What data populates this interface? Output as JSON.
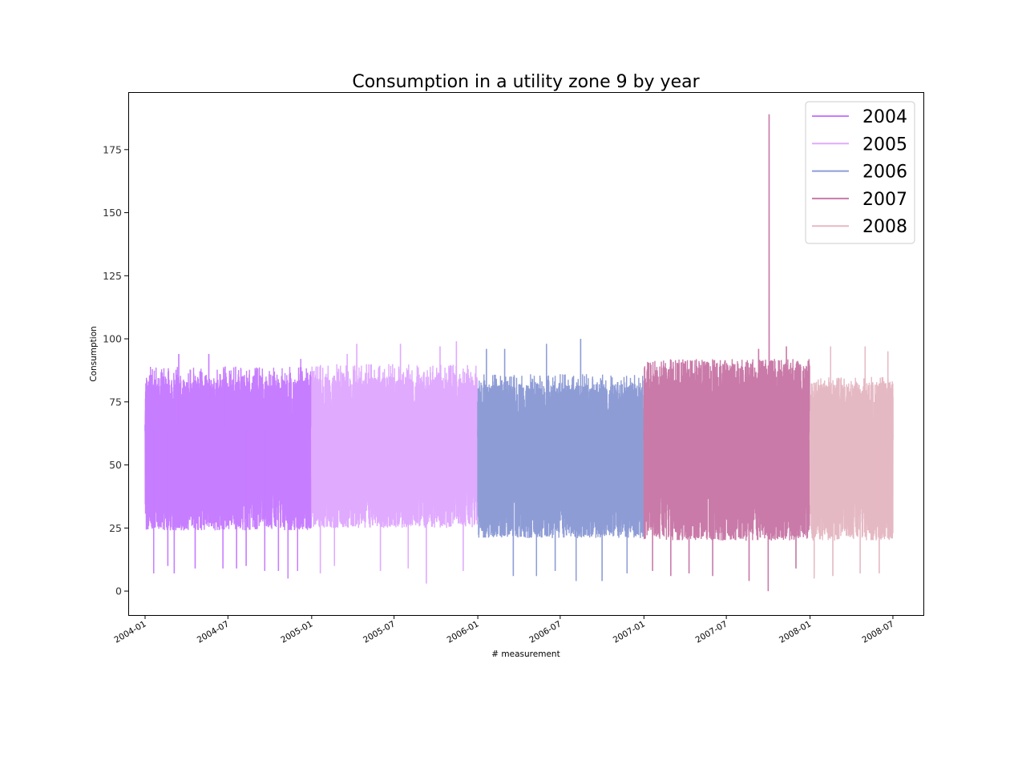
{
  "chart_data": {
    "type": "line",
    "title": "Consumption in a utility zone 9 by year",
    "xlabel": "# measurement",
    "ylabel": "Consumption",
    "xlim": [
      "2003-11-25",
      "2008-09-06"
    ],
    "ylim": [
      -9.5,
      197.8
    ],
    "x_ticks": [
      "2004-01",
      "2004-07",
      "2005-01",
      "2005-07",
      "2006-01",
      "2006-07",
      "2007-01",
      "2007-07",
      "2008-01",
      "2008-07"
    ],
    "y_ticks": [
      0,
      25,
      50,
      75,
      100,
      125,
      150,
      175
    ],
    "grid": false,
    "legend_position": "top-right",
    "series": [
      {
        "name": "2004",
        "color": "#c77dff",
        "x_start": "2004-01-01",
        "x_end": "2004-12-31",
        "typical_range": [
          24,
          84
        ],
        "points": [
          {
            "x": "2004-01-01",
            "y": 66
          },
          {
            "x": "2004-01-15",
            "y": 85
          },
          {
            "x": "2004-01-20",
            "y": 7
          },
          {
            "x": "2004-02-20",
            "y": 10
          },
          {
            "x": "2004-03-05",
            "y": 7
          },
          {
            "x": "2004-03-15",
            "y": 94
          },
          {
            "x": "2004-04-20",
            "y": 9
          },
          {
            "x": "2004-05-20",
            "y": 94
          },
          {
            "x": "2004-06-20",
            "y": 9
          },
          {
            "x": "2004-06-25",
            "y": 89
          },
          {
            "x": "2004-07-20",
            "y": 9
          },
          {
            "x": "2004-08-10",
            "y": 10
          },
          {
            "x": "2004-08-25",
            "y": 85
          },
          {
            "x": "2004-09-20",
            "y": 8
          },
          {
            "x": "2004-10-20",
            "y": 8
          },
          {
            "x": "2004-11-10",
            "y": 5
          },
          {
            "x": "2004-12-01",
            "y": 8
          },
          {
            "x": "2004-12-08",
            "y": 92
          },
          {
            "x": "2004-12-31",
            "y": 85
          }
        ]
      },
      {
        "name": "2005",
        "color": "#e0aaff",
        "x_start": "2005-01-01",
        "x_end": "2005-12-31",
        "typical_range": [
          25,
          85
        ],
        "points": [
          {
            "x": "2005-01-01",
            "y": 60
          },
          {
            "x": "2005-01-20",
            "y": 7
          },
          {
            "x": "2005-02-20",
            "y": 10
          },
          {
            "x": "2005-03-20",
            "y": 94
          },
          {
            "x": "2005-04-10",
            "y": 98
          },
          {
            "x": "2005-06-01",
            "y": 8
          },
          {
            "x": "2005-07-15",
            "y": 98
          },
          {
            "x": "2005-08-01",
            "y": 9
          },
          {
            "x": "2005-09-10",
            "y": 3
          },
          {
            "x": "2005-10-10",
            "y": 97
          },
          {
            "x": "2005-11-15",
            "y": 99
          },
          {
            "x": "2005-11-30",
            "y": 8
          },
          {
            "x": "2005-12-31",
            "y": 80
          }
        ]
      },
      {
        "name": "2006",
        "color": "#8e9cd6",
        "x_start": "2006-01-01",
        "x_end": "2006-12-31",
        "typical_range": [
          21,
          82
        ],
        "points": [
          {
            "x": "2006-01-01",
            "y": 75
          },
          {
            "x": "2006-01-20",
            "y": 96
          },
          {
            "x": "2006-03-01",
            "y": 96
          },
          {
            "x": "2006-03-20",
            "y": 6
          },
          {
            "x": "2006-05-10",
            "y": 6
          },
          {
            "x": "2006-06-01",
            "y": 98
          },
          {
            "x": "2006-06-20",
            "y": 8
          },
          {
            "x": "2006-08-05",
            "y": 4
          },
          {
            "x": "2006-08-15",
            "y": 100
          },
          {
            "x": "2006-10-01",
            "y": 4
          },
          {
            "x": "2006-11-25",
            "y": 7
          },
          {
            "x": "2006-12-31",
            "y": 62
          }
        ]
      },
      {
        "name": "2007",
        "color": "#c97aa8",
        "x_start": "2007-01-01",
        "x_end": "2007-12-31",
        "typical_range": [
          20,
          92
        ],
        "points": [
          {
            "x": "2007-01-01",
            "y": 62
          },
          {
            "x": "2007-01-20",
            "y": 8
          },
          {
            "x": "2007-03-01",
            "y": 6
          },
          {
            "x": "2007-04-10",
            "y": 7
          },
          {
            "x": "2007-06-01",
            "y": 6
          },
          {
            "x": "2007-08-20",
            "y": 4
          },
          {
            "x": "2007-09-10",
            "y": 96
          },
          {
            "x": "2007-10-01",
            "y": 0
          },
          {
            "x": "2007-10-03",
            "y": 189
          },
          {
            "x": "2007-11-10",
            "y": 97
          },
          {
            "x": "2007-12-01",
            "y": 9
          },
          {
            "x": "2007-12-31",
            "y": 60
          }
        ]
      },
      {
        "name": "2008",
        "color": "#e5b9c4",
        "x_start": "2008-01-01",
        "x_end": "2008-07-01",
        "typical_range": [
          20,
          83
        ],
        "points": [
          {
            "x": "2008-01-01",
            "y": 60
          },
          {
            "x": "2008-01-10",
            "y": 5
          },
          {
            "x": "2008-02-15",
            "y": 97
          },
          {
            "x": "2008-02-20",
            "y": 6
          },
          {
            "x": "2008-04-20",
            "y": 7
          },
          {
            "x": "2008-05-01",
            "y": 97
          },
          {
            "x": "2008-06-01",
            "y": 7
          },
          {
            "x": "2008-06-20",
            "y": 95
          },
          {
            "x": "2008-07-01",
            "y": 77
          }
        ]
      }
    ]
  }
}
